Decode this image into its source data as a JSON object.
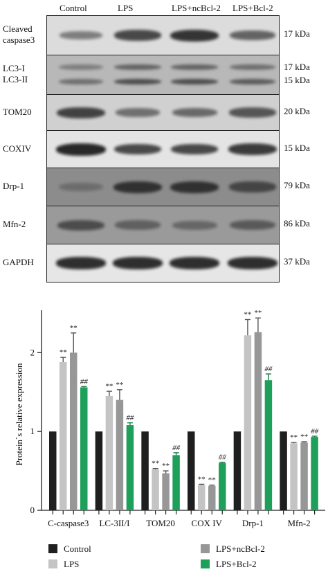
{
  "blot": {
    "lanes": [
      "Control",
      "LPS",
      "LPS+ncBcl-2",
      "LPS+Bcl-2"
    ],
    "panels": [
      {
        "label_lines": [
          "Cleaved",
          "caspase3"
        ],
        "kda_lines": [
          "17 kDa"
        ],
        "background": "#dcdcdc",
        "intensity": [
          0.35,
          0.75,
          0.9,
          0.55
        ]
      },
      {
        "label_lines": [
          "LC3-I",
          "LC3-II"
        ],
        "kda_lines": [
          "17 kDa",
          "15 kDa"
        ],
        "background": "#b8b8b8",
        "intensity": [
          0.45,
          0.7,
          0.7,
          0.6
        ]
      },
      {
        "label_lines": [
          "TOM20"
        ],
        "kda_lines": [
          "20 kDa"
        ],
        "background": "#d0d0d0",
        "intensity": [
          0.8,
          0.45,
          0.5,
          0.65
        ]
      },
      {
        "label_lines": [
          "COXIV"
        ],
        "kda_lines": [
          "15 kDa"
        ],
        "background": "#e4e4e4",
        "intensity": [
          1.0,
          0.75,
          0.75,
          0.85
        ]
      },
      {
        "label_lines": [
          "Drp-1"
        ],
        "kda_lines": [
          "79 kDa"
        ],
        "background": "#8c8c8c",
        "intensity": [
          0.45,
          0.9,
          0.9,
          0.75
        ]
      },
      {
        "label_lines": [
          "Mfn-2"
        ],
        "kda_lines": [
          "86 kDa"
        ],
        "background": "#9a9a9a",
        "intensity": [
          0.7,
          0.55,
          0.5,
          0.6
        ]
      },
      {
        "label_lines": [
          "GAPDH"
        ],
        "kda_lines": [
          "37 kDa"
        ],
        "background": "#e6e6e6",
        "intensity": [
          0.95,
          0.95,
          0.95,
          0.95
        ]
      }
    ]
  },
  "chart_data": {
    "type": "bar",
    "ylabel": "Protein`s relative expression",
    "ylim": [
      0,
      2.6
    ],
    "yticks": [
      0,
      1,
      2
    ],
    "categories": [
      "C-caspase3",
      "LC-3II/I",
      "TOM20",
      "COX IV",
      "Drp-1",
      "Mfn-2"
    ],
    "series": [
      {
        "name": "Control",
        "color": "#1f1f1f",
        "values": [
          1,
          1,
          1,
          1,
          1,
          1
        ],
        "errors": [
          0,
          0,
          0,
          0,
          0,
          0
        ],
        "marks": [
          "",
          "",
          "",
          "",
          "",
          ""
        ]
      },
      {
        "name": "LPS",
        "color": "#c4c4c4",
        "values": [
          1.88,
          1.45,
          0.52,
          0.32,
          2.22,
          0.85
        ],
        "errors": [
          0.06,
          0.06,
          0.01,
          0.01,
          0.2,
          0.01
        ],
        "marks": [
          "**",
          "**",
          "**",
          "**",
          "**",
          "**"
        ]
      },
      {
        "name": "LPS+ncBcl-2",
        "color": "#979797",
        "values": [
          2.0,
          1.4,
          0.47,
          0.31,
          2.26,
          0.86
        ],
        "errors": [
          0.25,
          0.13,
          0.03,
          0.01,
          0.18,
          0.01
        ],
        "marks": [
          "**",
          "**",
          "**",
          "**",
          "**",
          "**"
        ]
      },
      {
        "name": "LPS+Bcl-2",
        "color": "#1ea05a",
        "values": [
          1.56,
          1.08,
          0.7,
          0.6,
          1.65,
          0.93
        ],
        "errors": [
          0.01,
          0.03,
          0.03,
          0.01,
          0.08,
          0.01
        ],
        "marks": [
          "##",
          "##",
          "##",
          "##",
          "##",
          "##"
        ]
      }
    ],
    "legend_position": "bottom",
    "grid": false
  }
}
